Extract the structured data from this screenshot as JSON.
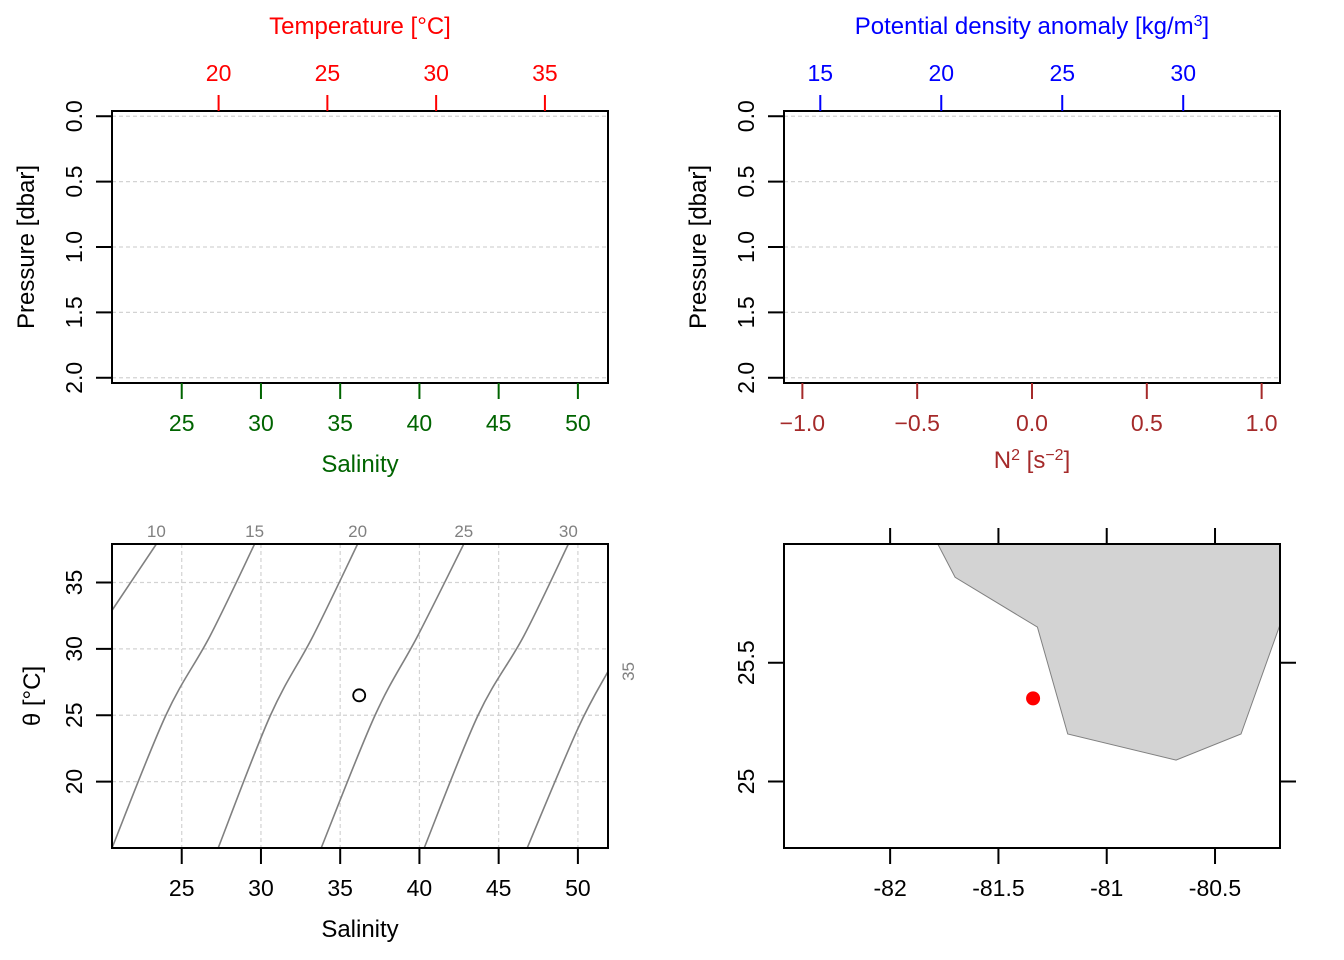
{
  "colors": {
    "temperature": "#ff0000",
    "salinity": "#006400",
    "density": "#0000ff",
    "n2": "#a52a2a",
    "grid": "#d3d3d3",
    "contour": "#808080",
    "land": "#d3d3d3",
    "station": "#ff0000",
    "axis": "#000000"
  },
  "chart_data": [
    {
      "type": "line",
      "panel": "profile-temperature-salinity",
      "top_axis": {
        "label": "Temperature [°C]",
        "ticks": [
          20,
          25,
          30,
          35
        ],
        "range": [
          15.1,
          37.9
        ]
      },
      "bottom_axis": {
        "label": "Salinity",
        "ticks": [
          25,
          30,
          35,
          40,
          45,
          50
        ],
        "range": [
          20.6,
          51.9
        ]
      },
      "y_axis": {
        "label": "Pressure [dbar]",
        "ticks": [
          "0.0",
          "0.5",
          "1.0",
          "1.5",
          "2.0"
        ],
        "range": [
          -0.04,
          2.04
        ],
        "reversed": true
      },
      "grid": true,
      "series": []
    },
    {
      "type": "line",
      "panel": "profile-density-n2",
      "top_axis": {
        "label": "Potential density anomaly [kg/m³]",
        "ticks": [
          15,
          20,
          25,
          30
        ],
        "range": [
          13.5,
          34.0
        ]
      },
      "bottom_axis": {
        "label": "N² [s⁻²]",
        "ticks": [
          "-1.0",
          "-0.5",
          "0.0",
          "0.5",
          "1.0"
        ],
        "range": [
          -1.08,
          1.08
        ]
      },
      "y_axis": {
        "label": "Pressure [dbar]",
        "ticks": [
          "0.0",
          "0.5",
          "1.0",
          "1.5",
          "2.0"
        ],
        "range": [
          -0.04,
          2.04
        ],
        "reversed": true
      },
      "grid": true,
      "series": []
    },
    {
      "type": "scatter",
      "panel": "ts-diagram",
      "x_axis": {
        "label": "Salinity",
        "ticks": [
          25,
          30,
          35,
          40,
          45,
          50
        ],
        "range": [
          20.6,
          51.9
        ]
      },
      "y_axis": {
        "label": "θ [°C]",
        "ticks": [
          20,
          25,
          30,
          35
        ],
        "range": [
          15.0,
          37.9
        ]
      },
      "grid": true,
      "points": [
        {
          "x": 36.2,
          "y": 26.5
        }
      ],
      "density_contours": [
        {
          "label": "10",
          "points": [
            [
              20.6,
              32.9
            ],
            [
              23.4,
              37.9
            ]
          ]
        },
        {
          "label": "15",
          "points": [
            [
              20.6,
              15.0
            ],
            [
              24.0,
              25.0
            ],
            [
              26.8,
              31.0
            ],
            [
              29.6,
              37.9
            ]
          ]
        },
        {
          "label": "20",
          "points": [
            [
              27.3,
              15.0
            ],
            [
              30.6,
              25.0
            ],
            [
              33.3,
              31.0
            ],
            [
              36.1,
              37.9
            ]
          ]
        },
        {
          "label": "25",
          "points": [
            [
              33.8,
              15.0
            ],
            [
              37.2,
              25.0
            ],
            [
              39.9,
              31.0
            ],
            [
              42.8,
              37.9
            ]
          ]
        },
        {
          "label": "30",
          "points": [
            [
              40.3,
              15.0
            ],
            [
              43.7,
              25.0
            ],
            [
              46.6,
              31.0
            ],
            [
              49.4,
              37.9
            ]
          ]
        },
        {
          "label": "35",
          "points": [
            [
              46.8,
              15.0
            ],
            [
              50.0,
              24.0
            ],
            [
              51.9,
              28.3
            ]
          ]
        }
      ]
    },
    {
      "type": "scatter",
      "panel": "station-map",
      "x_axis": {
        "ticks": [
          "-82",
          "-81.5",
          "-81",
          "-80.5"
        ],
        "range": [
          -82.49,
          -80.2
        ]
      },
      "y_axis": {
        "ticks": [
          "25",
          "25.5"
        ],
        "range": [
          24.72,
          26.0
        ]
      },
      "station": {
        "lon": -81.34,
        "lat": 25.35
      },
      "land": [
        [
          -81.78,
          26.0
        ],
        [
          -81.7,
          25.86
        ],
        [
          -81.32,
          25.65
        ],
        [
          -81.18,
          25.2
        ],
        [
          -80.68,
          25.09
        ],
        [
          -80.38,
          25.2
        ],
        [
          -80.2,
          25.66
        ],
        [
          -80.2,
          26.0
        ]
      ]
    }
  ]
}
